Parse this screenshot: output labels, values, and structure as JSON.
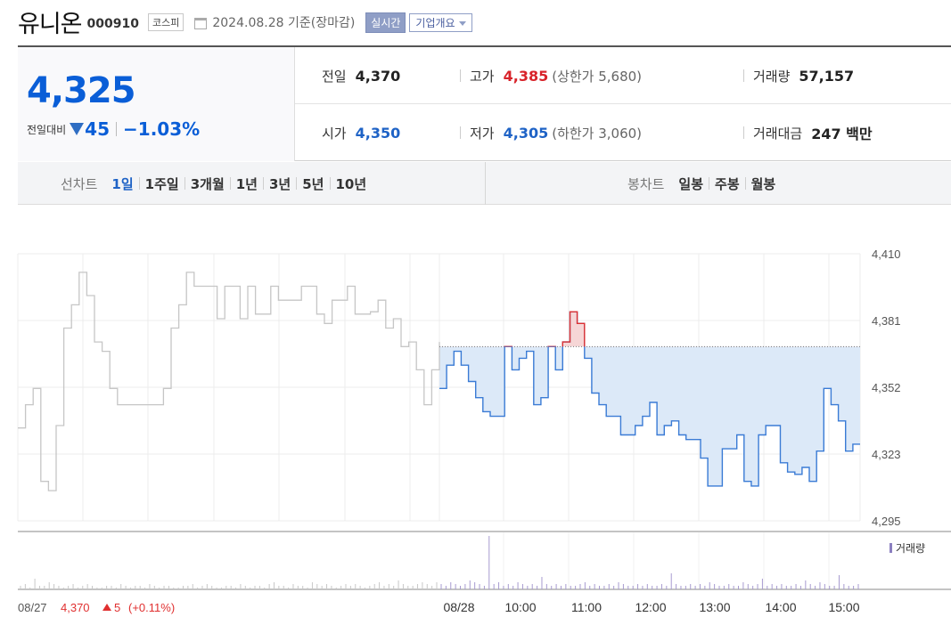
{
  "header": {
    "name": "유니온",
    "code": "000910",
    "market": "코스피",
    "date": "2024.08.28 기준(장마감)",
    "realtime_label": "실시간",
    "corp_label": "기업개요"
  },
  "quote": {
    "price": "4,325",
    "change_label": "전일대비",
    "change_amount": "45",
    "change_pct": "−1.03%",
    "prev_label": "전일",
    "prev": "4,370",
    "high_label": "고가",
    "high": "4,385",
    "upper_limit": "(상한가 5,680)",
    "volume_label": "거래량",
    "volume": "57,157",
    "open_label": "시가",
    "open": "4,350",
    "low_label": "저가",
    "low": "4,305",
    "lower_limit": "(하한가 3,060)",
    "amount_label": "거래대금",
    "amount": "247 백만"
  },
  "tabs": {
    "line_title": "선차트",
    "line_periods": [
      "1일",
      "1주일",
      "3개월",
      "1년",
      "3년",
      "5년",
      "10년"
    ],
    "selected": "1일",
    "candle_title": "봉차트",
    "candle_periods": [
      "일봉",
      "주봉",
      "월봉"
    ]
  },
  "chart_data": {
    "type": "line",
    "ylim": [
      4295,
      4410
    ],
    "yticks": [
      "4,410",
      "4,381",
      "4,352",
      "4,323",
      "4,295"
    ],
    "xticks": [
      "08/28",
      "10:00",
      "11:00",
      "12:00",
      "13:00",
      "14:00",
      "15:00"
    ],
    "prev_close": 4370,
    "legend": "거래량",
    "prev_day": {
      "label": "08/27",
      "price": "4,370",
      "change": "5",
      "change_pct": "(+0.11%)",
      "series_color": "#c6c6c6",
      "values": [
        4335,
        4345,
        4352,
        4312,
        4308,
        4336,
        4378,
        4388,
        4402,
        4392,
        4372,
        4368,
        4352,
        4345,
        4345,
        4345,
        4345,
        4345,
        4345,
        4352,
        4378,
        4388,
        4402,
        4396,
        4396,
        4396,
        4382,
        4396,
        4396,
        4382,
        4396,
        4384,
        4384,
        4396,
        4390,
        4390,
        4390,
        4396,
        4396,
        4384,
        4380,
        4390,
        4390,
        4396,
        4384,
        4384,
        4385,
        4390,
        4378,
        4382,
        4370,
        4372,
        4360,
        4345,
        4360,
        4372
      ]
    },
    "series": [
      {
        "name": "08/28",
        "color": "#3a7bd5",
        "fill": "#dce9f8",
        "up_color": "#e03030",
        "values": [
          4352,
          4362,
          4368,
          4362,
          4355,
          4348,
          4342,
          4340,
          4340,
          4370,
          4360,
          4365,
          4368,
          4345,
          4348,
          4370,
          4360,
          4372,
          4385,
          4380,
          4365,
          4350,
          4345,
          4340,
          4340,
          4332,
          4332,
          4336,
          4340,
          4346,
          4332,
          4336,
          4338,
          4332,
          4330,
          4330,
          4322,
          4310,
          4310,
          4326,
          4326,
          4332,
          4312,
          4310,
          4332,
          4336,
          4336,
          4320,
          4316,
          4315,
          4318,
          4312,
          4325,
          4352,
          4345,
          4338,
          4325,
          4328,
          4328
        ]
      }
    ],
    "volume": {
      "prev_day": [
        2,
        3,
        1,
        6,
        2,
        2,
        4,
        3,
        2,
        1,
        2,
        3,
        1,
        2,
        3,
        2,
        1,
        1,
        2,
        2,
        1,
        3,
        2,
        1,
        2,
        2,
        1,
        3,
        2,
        1,
        2,
        2,
        1,
        1,
        2,
        2,
        3,
        1,
        2,
        3,
        2,
        1,
        1,
        2,
        2,
        1,
        3,
        2,
        1,
        2,
        2,
        1,
        3,
        4,
        2,
        2,
        1,
        3,
        2,
        2,
        1,
        4,
        3,
        2,
        3,
        2,
        1,
        2,
        3,
        2,
        3,
        2,
        1,
        2,
        3,
        4,
        2,
        3,
        2,
        5,
        3,
        2,
        2,
        3,
        4,
        3,
        2,
        4
      ],
      "today": [
        3,
        2,
        4,
        3,
        2,
        3,
        5,
        4,
        3,
        2,
        30,
        3,
        4,
        2,
        3,
        2,
        4,
        3,
        2,
        3,
        2,
        7,
        3,
        2,
        3,
        2,
        3,
        2,
        2,
        3,
        4,
        2,
        3,
        2,
        2,
        3,
        2,
        4,
        3,
        2,
        2,
        3,
        2,
        3,
        2,
        2,
        3,
        2,
        9,
        3,
        2,
        2,
        3,
        2,
        3,
        2,
        4,
        3,
        2,
        2,
        3,
        2,
        2,
        4,
        3,
        2,
        3,
        6,
        2,
        3,
        2,
        3,
        2,
        2,
        3,
        2,
        5,
        3,
        2,
        4,
        3,
        2,
        2,
        8,
        3,
        2,
        2,
        3
      ]
    }
  }
}
